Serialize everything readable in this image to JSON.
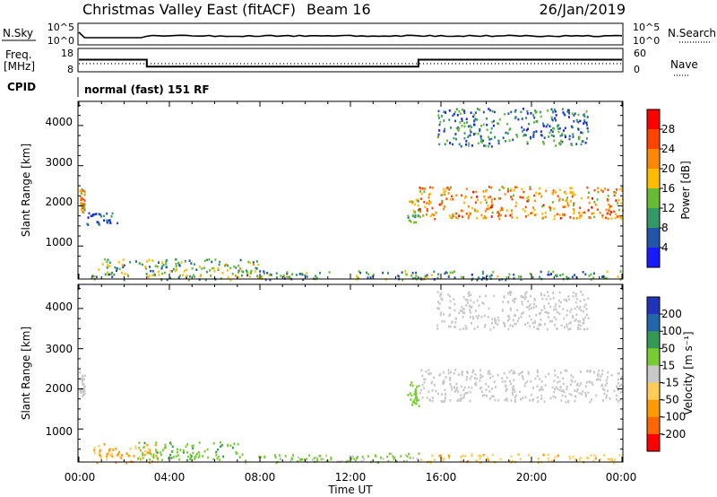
{
  "header": {
    "title": "Christmas Valley East (fitACF)",
    "beam": "Beam 16",
    "date": "26/Jan/2019"
  },
  "top_panels": {
    "nsky": {
      "left_label": "N.Sky",
      "right_label": "N.Search",
      "ticks_left": [
        "10^5",
        "10^0"
      ],
      "ticks_right": [
        "10^5",
        "10^0"
      ]
    },
    "freq": {
      "left_label_line1": "Freq.",
      "left_label_line2": "[MHz]",
      "right_label": "Nave",
      "ticks_left": [
        "18",
        "8"
      ],
      "ticks_right": [
        "60",
        "0"
      ],
      "freq_steps": [
        {
          "from": "00:00",
          "to": "03:00",
          "value": 13.2
        },
        {
          "from": "03:00",
          "to": "15:00",
          "value": 10.2
        },
        {
          "from": "15:00",
          "to": "24:00",
          "value": 13.2
        }
      ]
    },
    "cpid": {
      "label": "CPID",
      "text": "normal (fast) 151 RF"
    }
  },
  "axes": {
    "ylabel": "Slant Range [km]",
    "yticks": [
      "1000",
      "2000",
      "3000",
      "4000"
    ],
    "xlabel": "Time UT",
    "xticks": [
      "00:00",
      "04:00",
      "08:00",
      "12:00",
      "16:00",
      "20:00",
      "00:00"
    ]
  },
  "power_panel": {
    "colorbar_label": "Power [dB]",
    "colorbar_ticks": [
      "4",
      "8",
      "12",
      "16",
      "20",
      "24",
      "28"
    ],
    "colors": [
      "#1a1aff",
      "#2255aa",
      "#339966",
      "#66bb33",
      "#ffbb00",
      "#ff8800",
      "#ff4400",
      "#ff0000"
    ]
  },
  "velocity_panel": {
    "colorbar_label": "Velocity [m s⁻¹]",
    "colorbar_ticks": [
      "200",
      "100",
      "50",
      "15",
      "-15",
      "-50",
      "-100",
      "-200"
    ],
    "colors": [
      "#2233bb",
      "#2266aa",
      "#339955",
      "#77cc33",
      "#c8c8c8",
      "#ffcc55",
      "#ff9900",
      "#ff6600",
      "#ff0000"
    ]
  },
  "chart_data": [
    {
      "type": "heatmap",
      "title": "Power [dB]",
      "xlabel": "Time UT",
      "ylabel": "Slant Range [km]",
      "xlim": [
        "00:00",
        "24:00"
      ],
      "ylim": [
        180,
        4600
      ],
      "clim": [
        0,
        30
      ],
      "echo_regions": [
        {
          "t": [
            0.0,
            0.25
          ],
          "r": [
            1850,
            2450
          ],
          "power": 18
        },
        {
          "t": [
            0.3,
            1.8
          ],
          "r": [
            1550,
            1850
          ],
          "power": 6
        },
        {
          "t": [
            0.5,
            8.0
          ],
          "r": [
            180,
            700
          ],
          "power": 12
        },
        {
          "t": [
            8.0,
            15.0
          ],
          "r": [
            180,
            400
          ],
          "power": 10
        },
        {
          "t": [
            14.5,
            15.0
          ],
          "r": [
            1600,
            2200
          ],
          "power": 14
        },
        {
          "t": [
            15.0,
            24.0
          ],
          "r": [
            1700,
            2500
          ],
          "power": 20
        },
        {
          "t": [
            15.8,
            22.5
          ],
          "r": [
            3500,
            4450
          ],
          "power": 8
        },
        {
          "t": [
            15.0,
            24.0
          ],
          "r": [
            180,
            400
          ],
          "power": 10
        }
      ]
    },
    {
      "type": "heatmap",
      "title": "Velocity [m s⁻¹]",
      "xlabel": "Time UT",
      "ylabel": "Slant Range [km]",
      "xlim": [
        "00:00",
        "24:00"
      ],
      "ylim": [
        180,
        4600
      ],
      "clim": [
        -200,
        200
      ],
      "echo_regions": [
        {
          "t": [
            0.0,
            0.25
          ],
          "r": [
            1850,
            2450
          ],
          "velocity": 0
        },
        {
          "t": [
            0.5,
            3.5
          ],
          "r": [
            180,
            650
          ],
          "velocity": -50
        },
        {
          "t": [
            2.5,
            7.0
          ],
          "r": [
            250,
            700
          ],
          "velocity": 40
        },
        {
          "t": [
            7.0,
            15.0
          ],
          "r": [
            180,
            420
          ],
          "velocity": 20
        },
        {
          "t": [
            14.5,
            15.0
          ],
          "r": [
            1600,
            2200
          ],
          "velocity": 30
        },
        {
          "t": [
            15.0,
            24.0
          ],
          "r": [
            1700,
            2500
          ],
          "velocity": 0
        },
        {
          "t": [
            15.8,
            22.5
          ],
          "r": [
            3500,
            4450
          ],
          "velocity": 0
        },
        {
          "t": [
            15.0,
            24.0
          ],
          "r": [
            180,
            400
          ],
          "velocity": -40
        }
      ]
    }
  ]
}
